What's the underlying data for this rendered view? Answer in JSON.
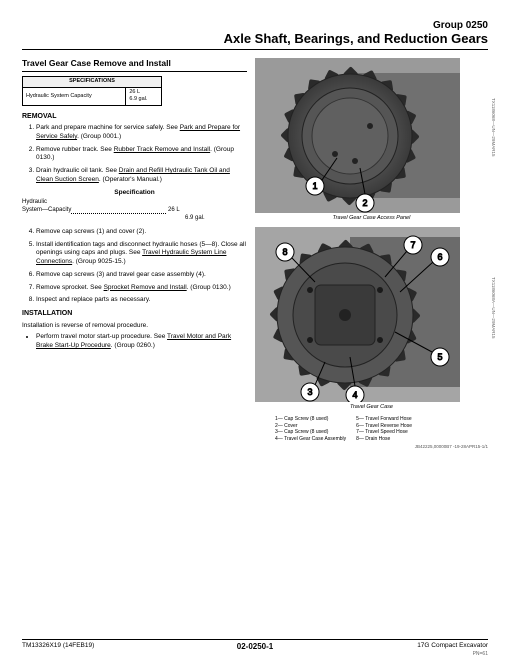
{
  "header": {
    "group": "Group  0250",
    "title": "Axle Shaft, Bearings, and Reduction Gears"
  },
  "section_title": "Travel Gear Case Remove and Install",
  "spec_table": {
    "header": "SPECIFICATIONS",
    "label": "Hydraulic System Capacity",
    "v1": "26 L",
    "v2": "6.9 gal."
  },
  "removal": {
    "heading": "REMOVAL",
    "steps": [
      {
        "t": "Park and prepare machine for service safely. See ",
        "u": "Park and Prepare for Service Safely",
        "s": ". (Group 0001.)"
      },
      {
        "t": "Remove rubber track. See ",
        "u": "Rubber Track Remove and Install",
        "s": ". (Group 0130.)"
      },
      {
        "t": "Drain hydraulic oil tank. See ",
        "u": "Drain and Refill Hydraulic Tank Oil and Clean Suction Screen",
        "s": ". (Operator's Manual.)"
      }
    ],
    "spec_heading": "Specification",
    "spec_label": "Hydraulic\nSystem—Capacity",
    "spec_v1": "26 L",
    "spec_v2": "6.9 gal.",
    "steps2": [
      {
        "t": "Remove cap screws (1) and cover (2)."
      },
      {
        "t": "Install identification tags and disconnect hydraulic hoses (5—8). Close all openings using caps and plugs. See ",
        "u": "Travel Hydraulic System Line Connections",
        "s": ". (Group 9025-15.)"
      },
      {
        "t": "Remove cap screws (3) and travel gear case assembly (4)."
      },
      {
        "t": "Remove sprocket. See ",
        "u": "Sprocket Remove and Install",
        "s": ". (Group 0130.)"
      },
      {
        "t": "Inspect and replace parts as necessary."
      }
    ]
  },
  "installation": {
    "heading": "INSTALLATION",
    "text": "Installation is reverse of removal procedure.",
    "bullet": {
      "t": "Perform travel motor start-up procedure. See ",
      "u": "Travel Motor and Park Brake Start-Up Procedure",
      "s": ". (Group 0260.)"
    }
  },
  "fig1": {
    "caption": "Travel Gear Case Access Panel",
    "ref": "TX1186068—UN—29MAR15"
  },
  "fig2": {
    "caption": "Travel Gear Case",
    "ref": "TX1186068A—UN—29MAR15"
  },
  "legend": {
    "l1": "1— Cap Screw (8 used)",
    "l2": "2— Cover",
    "l3": "3— Cap Screw (8 used)",
    "l4": "4— Travel Gear Case Assembly",
    "l5": "5— Travel Forward Hose",
    "l6": "6— Travel Reverse Hose",
    "l7": "7— Travel Speed Hose",
    "l8": "8— Drain Hose"
  },
  "docref": "JB42225,00000B7 -19-28APR15-1/1",
  "footer": {
    "left": "TM13326X19 (14FEB19)",
    "center": "02-0250-1",
    "right": "17G Compact Excavator",
    "pn": "PN=61"
  },
  "fig_style": {
    "gear_fill": "#6a6a6a",
    "gear_stroke": "#2a2a2a",
    "hub_fill": "#4a4a4a",
    "callout_stroke": "#000",
    "callout_fill": "#fff",
    "bg": "#888"
  }
}
